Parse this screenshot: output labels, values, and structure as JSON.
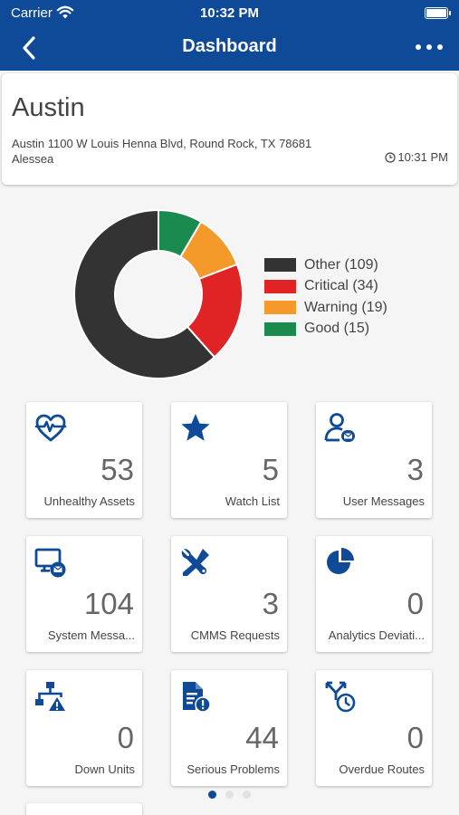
{
  "status_bar": {
    "carrier": "Carrier",
    "time": "10:32 PM",
    "icons": [
      "wifi-icon",
      "battery-icon"
    ]
  },
  "nav": {
    "title": "Dashboard",
    "icons": [
      "back-chevron-icon",
      "more-icon"
    ]
  },
  "site": {
    "name": "Austin",
    "address": "Austin 1100 W Louis Henna Blvd, Round Rock, TX 78681",
    "user": "Alessea",
    "updated_time": "10:31 PM",
    "updated_icon": "clock-icon"
  },
  "chart_data": {
    "type": "pie",
    "categories": [
      "Other",
      "Critical",
      "Warning",
      "Good"
    ],
    "values": [
      109,
      34,
      19,
      15
    ],
    "colors": [
      "#333333",
      "#e02426",
      "#f49a2b",
      "#1b8a4e"
    ],
    "legend_labels": [
      "Other (109)",
      "Critical (34)",
      "Warning (19)",
      "Good (15)"
    ],
    "legend": "right",
    "style": "donut"
  },
  "tiles": [
    {
      "icon": "heartbeat-icon",
      "count": "53",
      "label": "Unhealthy Assets"
    },
    {
      "icon": "star-icon",
      "count": "5",
      "label": "Watch List"
    },
    {
      "icon": "user-message-icon",
      "count": "3",
      "label": "User Messages"
    },
    {
      "icon": "monitor-message-icon",
      "count": "104",
      "label": "System Messa..."
    },
    {
      "icon": "tools-icon",
      "count": "3",
      "label": "CMMS Requests"
    },
    {
      "icon": "pie-chart-icon",
      "count": "0",
      "label": "Analytics Deviati..."
    },
    {
      "icon": "network-warning-icon",
      "count": "0",
      "label": "Down Units"
    },
    {
      "icon": "document-alert-icon",
      "count": "44",
      "label": "Serious Problems"
    },
    {
      "icon": "route-clock-icon",
      "count": "0",
      "label": "Overdue Routes"
    }
  ],
  "pager": {
    "pages": 3,
    "active": 0
  },
  "colors": {
    "brand": "#0e4a97",
    "icon": "#0e4a97",
    "background": "#f5f5f5"
  }
}
